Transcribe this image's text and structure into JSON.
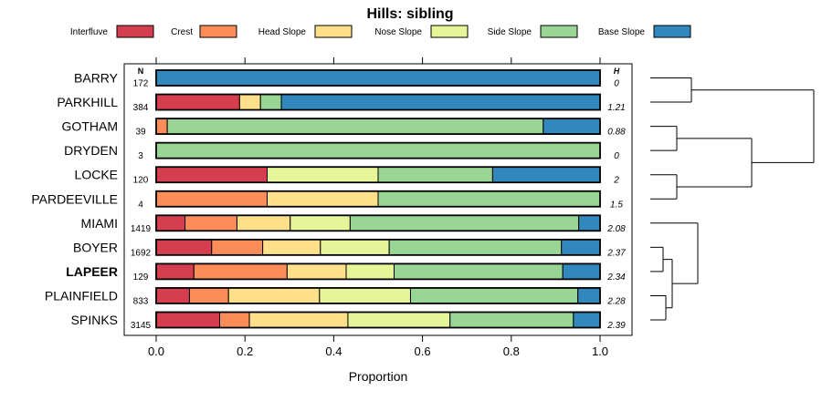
{
  "chart_data": {
    "type": "bar",
    "stacked": true,
    "orientation": "horizontal",
    "title": "Hills: sibling",
    "xlabel": "Proportion",
    "ylabel": "",
    "xlim": [
      0,
      1
    ],
    "x_ticks": [
      "0.0",
      "0.2",
      "0.4",
      "0.6",
      "0.8",
      "1.0"
    ],
    "n_header": "N",
    "h_header": "H",
    "legend_position": "top",
    "highlighted_category": "LAPEER",
    "legend": [
      {
        "name": "Interfluve",
        "color": "#d53e4f"
      },
      {
        "name": "Crest",
        "color": "#fc8d59"
      },
      {
        "name": "Head Slope",
        "color": "#fee08b"
      },
      {
        "name": "Nose Slope",
        "color": "#e6f598"
      },
      {
        "name": "Side Slope",
        "color": "#99d594"
      },
      {
        "name": "Base Slope",
        "color": "#3288bd"
      }
    ],
    "categories": [
      "BARRY",
      "PARKHILL",
      "GOTHAM",
      "DRYDEN",
      "LOCKE",
      "PARDEEVILLE",
      "MIAMI",
      "BOYER",
      "LAPEER",
      "PLAINFIELD",
      "SPINKS"
    ],
    "n_values": [
      "172",
      "384",
      "39",
      "3",
      "120",
      "4",
      "1419",
      "1692",
      "129",
      "833",
      "3145"
    ],
    "h_values": [
      "0",
      "1.21",
      "0.88",
      "0",
      "2",
      "1.5",
      "2.08",
      "2.37",
      "2.34",
      "2.28",
      "2.39"
    ],
    "series": [
      {
        "name": "Interfluve",
        "values": [
          0,
          0.188,
          0,
          0,
          0.25,
          0,
          0.065,
          0.125,
          0.085,
          0.075,
          0.143
        ]
      },
      {
        "name": "Crest",
        "values": [
          0,
          0,
          0.025,
          0,
          0,
          0.25,
          0.117,
          0.115,
          0.21,
          0.088,
          0.067
        ]
      },
      {
        "name": "Head Slope",
        "values": [
          0,
          0.047,
          0,
          0,
          0,
          0.25,
          0.12,
          0.13,
          0.133,
          0.205,
          0.222
        ]
      },
      {
        "name": "Nose Slope",
        "values": [
          0,
          0,
          0,
          0,
          0.25,
          0,
          0.135,
          0.155,
          0.108,
          0.205,
          0.23
        ]
      },
      {
        "name": "Side Slope",
        "values": [
          0,
          0.047,
          0.847,
          1.0,
          0.258,
          0.5,
          0.515,
          0.388,
          0.38,
          0.377,
          0.278
        ]
      },
      {
        "name": "Base Slope",
        "values": [
          1.0,
          0.718,
          0.128,
          0,
          0.242,
          0,
          0.048,
          0.087,
          0.084,
          0.05,
          0.06
        ]
      }
    ],
    "dendrogram": "hierarchical clustering tree of the eleven categories"
  }
}
